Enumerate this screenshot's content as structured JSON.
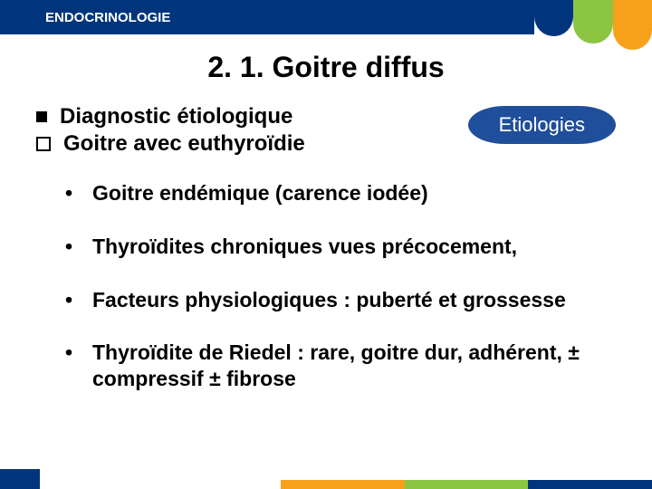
{
  "header": {
    "title": "ENDOCRINOLOGIE"
  },
  "slide": {
    "title": "2. 1. Goitre diffus",
    "diag_line1": "Diagnostic étiologique",
    "diag_line2": "Goitre avec euthyroïdie",
    "badge": "Etiologies",
    "bullets": {
      "b1": "Goitre endémique (carence iodée)",
      "b2": "Thyroïdites chroniques vues précocement,",
      "b3": "Facteurs physiologiques : puberté et grossesse",
      "b4": "Thyroïdite de Riedel : rare, goitre dur, adhérent, ± compressif ± fibrose"
    }
  },
  "colors": {
    "brand_blue": "#00357e",
    "accent_blue": "#1f4e9b",
    "green": "#8bc541",
    "orange": "#f7a11b",
    "text": "#000000",
    "bg": "#ffffff"
  }
}
